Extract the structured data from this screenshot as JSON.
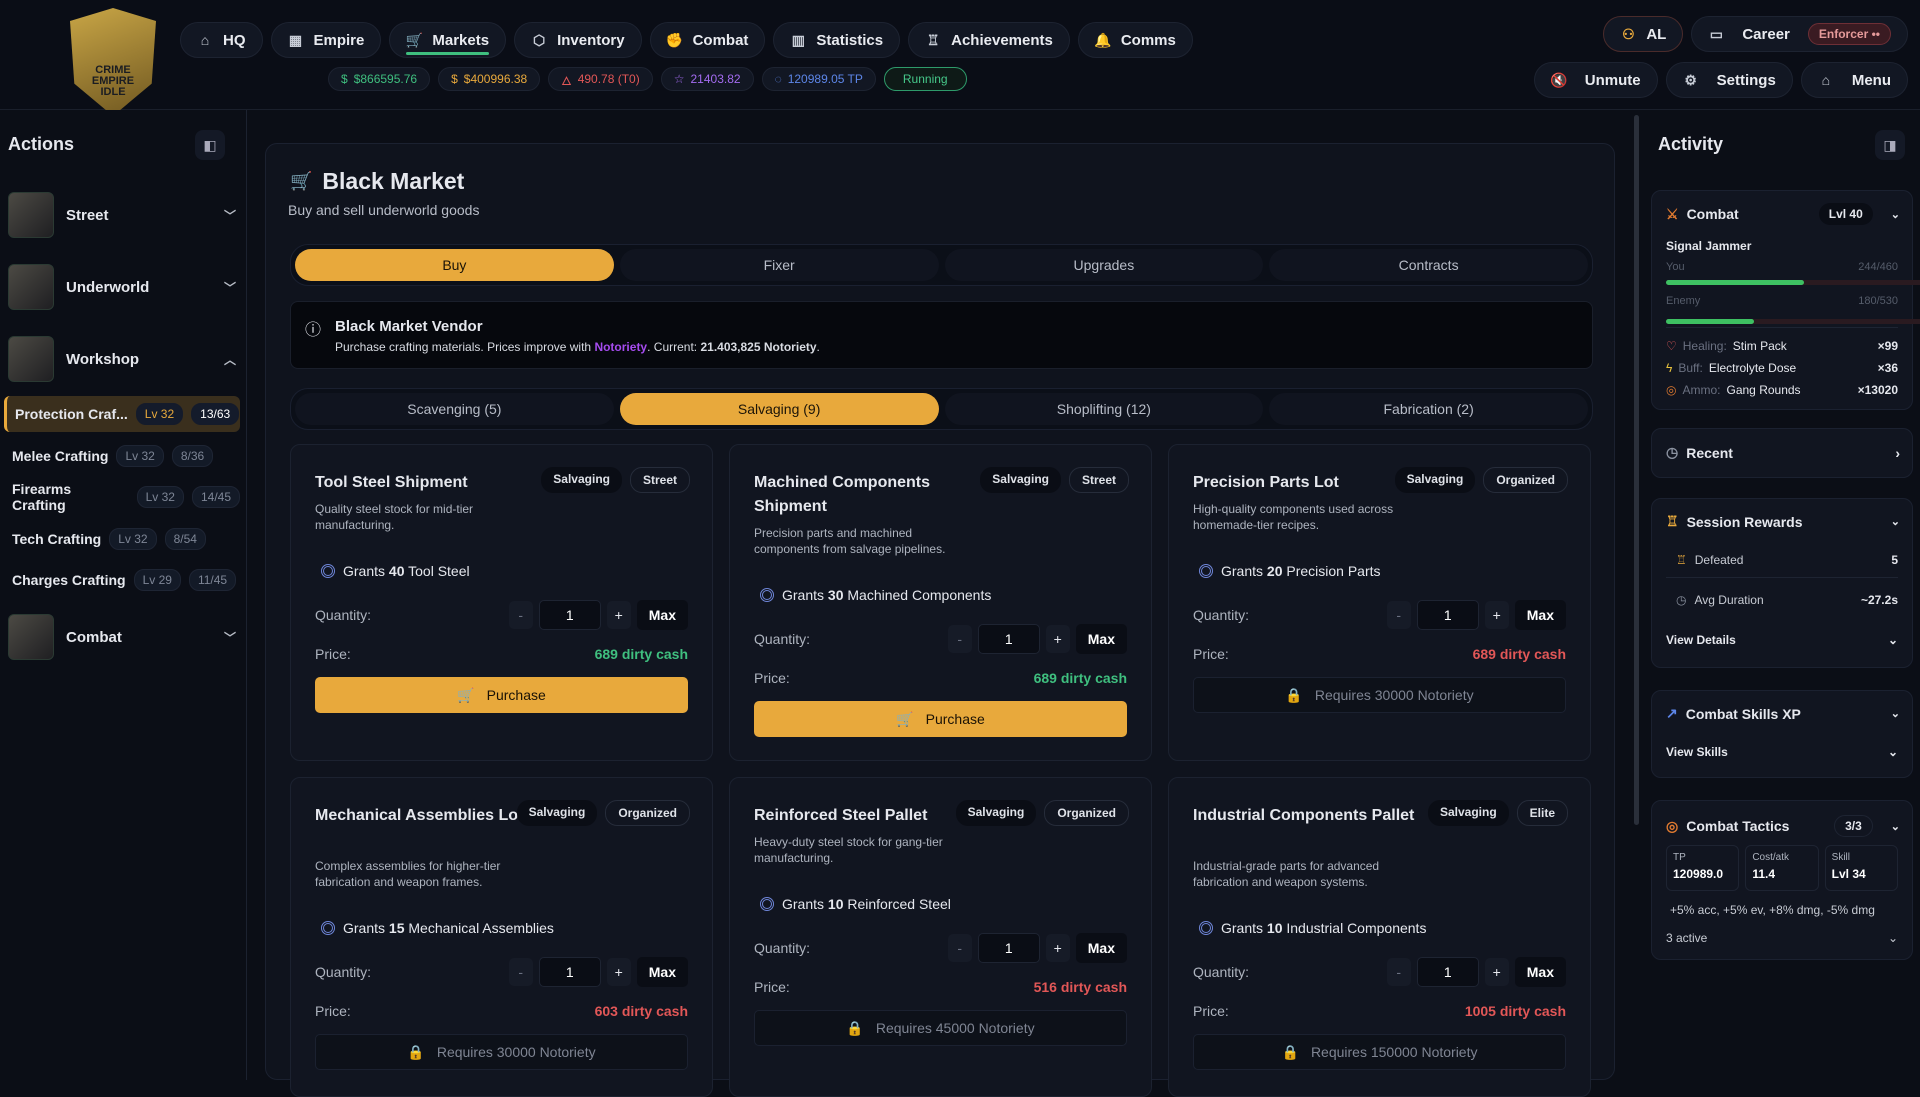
{
  "logo": {
    "text": "CRIME EMPIRE IDLE"
  },
  "nav": [
    {
      "label": "HQ",
      "icon": "home-icon",
      "glyph": "⌂"
    },
    {
      "label": "Empire",
      "icon": "building-icon",
      "glyph": "▦"
    },
    {
      "label": "Markets",
      "icon": "cart-icon",
      "glyph": "🛒",
      "active": true
    },
    {
      "label": "Inventory",
      "icon": "box-icon",
      "glyph": "⬡"
    },
    {
      "label": "Combat",
      "icon": "fist-icon",
      "glyph": "✊"
    },
    {
      "label": "Statistics",
      "icon": "bar-chart-icon",
      "glyph": "▥"
    },
    {
      "label": "Achievements",
      "icon": "trophy-icon",
      "glyph": "♖"
    },
    {
      "label": "Comms",
      "icon": "bell-icon",
      "glyph": "🔔"
    }
  ],
  "chips": [
    {
      "label": "$866595.76",
      "icon": "$",
      "color": "#3fbf7f"
    },
    {
      "label": "$400996.38",
      "icon": "$",
      "color": "#e8a93c"
    },
    {
      "label": "490.78 (T0)",
      "icon": "🜂",
      "color": "#e25757"
    },
    {
      "label": "21403.82",
      "icon": "☆",
      "color": "#a36bf0"
    },
    {
      "label": "120989.05 TP",
      "icon": "◌",
      "color": "#5d86e8"
    }
  ],
  "status": "Running",
  "user": {
    "initials": "AL",
    "career": "Career",
    "role": "Enforcer"
  },
  "controls": {
    "unmute": "Unmute",
    "settings": "Settings",
    "menu": "Menu"
  },
  "sidebar": {
    "title": "Actions",
    "groups": [
      {
        "label": "Street"
      },
      {
        "label": "Underworld"
      },
      {
        "label": "Workshop"
      },
      {
        "label": "Combat"
      }
    ],
    "items": [
      {
        "label": "Protection Craf...",
        "lv": "Lv 32",
        "count": "13/63",
        "active": true
      },
      {
        "label": "Melee Crafting",
        "lv": "Lv 32",
        "count": "8/36"
      },
      {
        "label": "Firearms Crafting",
        "lv": "Lv 32",
        "count": "14/45"
      },
      {
        "label": "Tech Crafting",
        "lv": "Lv 32",
        "count": "8/54"
      },
      {
        "label": "Charges Crafting",
        "lv": "Lv 29",
        "count": "11/45"
      }
    ]
  },
  "main": {
    "title": "Black Market",
    "subtitle": "Buy and sell underworld goods",
    "tabs": [
      "Buy",
      "Fixer",
      "Upgrades",
      "Contracts"
    ],
    "active_tab": 0,
    "vendor": {
      "title": "Black Market Vendor",
      "text1": "Purchase crafting materials. Prices improve with ",
      "link": "Notoriety",
      "text2": ". Current: ",
      "current": "21.403,825 Notoriety",
      "text3": "."
    },
    "subtabs": [
      "Scavenging (5)",
      "Salvaging (9)",
      "Shoplifting (12)",
      "Fabrication (2)"
    ],
    "active_subtab": 1,
    "quantity_label": "Quantity:",
    "price_label": "Price:",
    "items": [
      {
        "title": "Tool Steel Shipment",
        "tags": [
          "Salvaging",
          "Street"
        ],
        "desc": "Quality steel stock for mid-tier manufacturing.",
        "grant_n": "40",
        "grant": "Tool Steel",
        "qty": "1",
        "price": "689 dirty cash",
        "afford": true,
        "action": "Purchase"
      },
      {
        "title": "Machined Components Shipment",
        "tags": [
          "Salvaging",
          "Street"
        ],
        "desc": "Precision parts and machined components from salvage pipelines.",
        "grant_n": "30",
        "grant": "Machined Components",
        "qty": "1",
        "price": "689 dirty cash",
        "afford": true,
        "action": "Purchase"
      },
      {
        "title": "Precision Parts Lot",
        "tags": [
          "Salvaging",
          "Organized"
        ],
        "desc": "High-quality components used across homemade-tier recipes.",
        "grant_n": "20",
        "grant": "Precision Parts",
        "qty": "1",
        "price": "689 dirty cash",
        "afford": false,
        "action": "Requires 30000 Notoriety"
      },
      {
        "title": "Mechanical Assemblies Lot",
        "tags": [
          "Salvaging",
          "Organized"
        ],
        "desc": "Complex assemblies for higher-tier fabrication and weapon frames.",
        "grant_n": "15",
        "grant": "Mechanical Assemblies",
        "qty": "1",
        "price": "603 dirty cash",
        "afford": false,
        "action": "Requires 30000 Notoriety"
      },
      {
        "title": "Reinforced Steel Pallet",
        "tags": [
          "Salvaging",
          "Organized"
        ],
        "desc": "Heavy-duty steel stock for gang-tier manufacturing.",
        "grant_n": "10",
        "grant": "Reinforced Steel",
        "qty": "1",
        "price": "516 dirty cash",
        "afford": false,
        "action": "Requires 45000 Notoriety"
      },
      {
        "title": "Industrial Components Pallet",
        "tags": [
          "Salvaging",
          "Elite"
        ],
        "desc": "Industrial-grade parts for advanced fabrication and weapon systems.",
        "grant_n": "10",
        "grant": "Industrial Components",
        "qty": "1",
        "price": "1005 dirty cash",
        "afford": false,
        "action": "Requires 150000 Notoriety"
      }
    ]
  },
  "activity": {
    "title": "Activity",
    "combat": {
      "title": "Combat",
      "level": "Lvl 40",
      "enemy_name": "Signal Jammer",
      "you_label": "You",
      "you_hp": "244/460",
      "you_frac": 0.53,
      "enemy_label": "Enemy",
      "enemy_hp": "180/530",
      "enemy_frac": 0.34,
      "consumables": [
        {
          "type": "Healing:",
          "name": "Stim Pack",
          "count": "×99",
          "glyph": "♡",
          "color": "#e05a5a"
        },
        {
          "type": "Buff:",
          "name": "Electrolyte Dose",
          "count": "×36",
          "glyph": "ϟ",
          "color": "#e8c23c"
        },
        {
          "type": "Ammo:",
          "name": "Gang Rounds",
          "count": "×13020",
          "glyph": "◎",
          "color": "#e07a30"
        }
      ]
    },
    "recent": {
      "title": "Recent"
    },
    "session": {
      "title": "Session Rewards",
      "rows": [
        {
          "label": "Defeated",
          "value": "5"
        },
        {
          "label": "Avg Duration",
          "value": "~27.2s"
        }
      ],
      "details": "View Details"
    },
    "skills": {
      "title": "Combat Skills XP",
      "link": "View Skills"
    },
    "tactics": {
      "title": "Combat Tactics",
      "count": "3/3",
      "stats": [
        {
          "label": "TP",
          "value": "120989.0"
        },
        {
          "label": "Cost/atk",
          "value": "11.4"
        },
        {
          "label": "Skill",
          "value": "Lvl 34"
        }
      ],
      "effects": "+5% acc, +5% ev, +8% dmg, -5% dmg",
      "active": "3 active"
    }
  }
}
